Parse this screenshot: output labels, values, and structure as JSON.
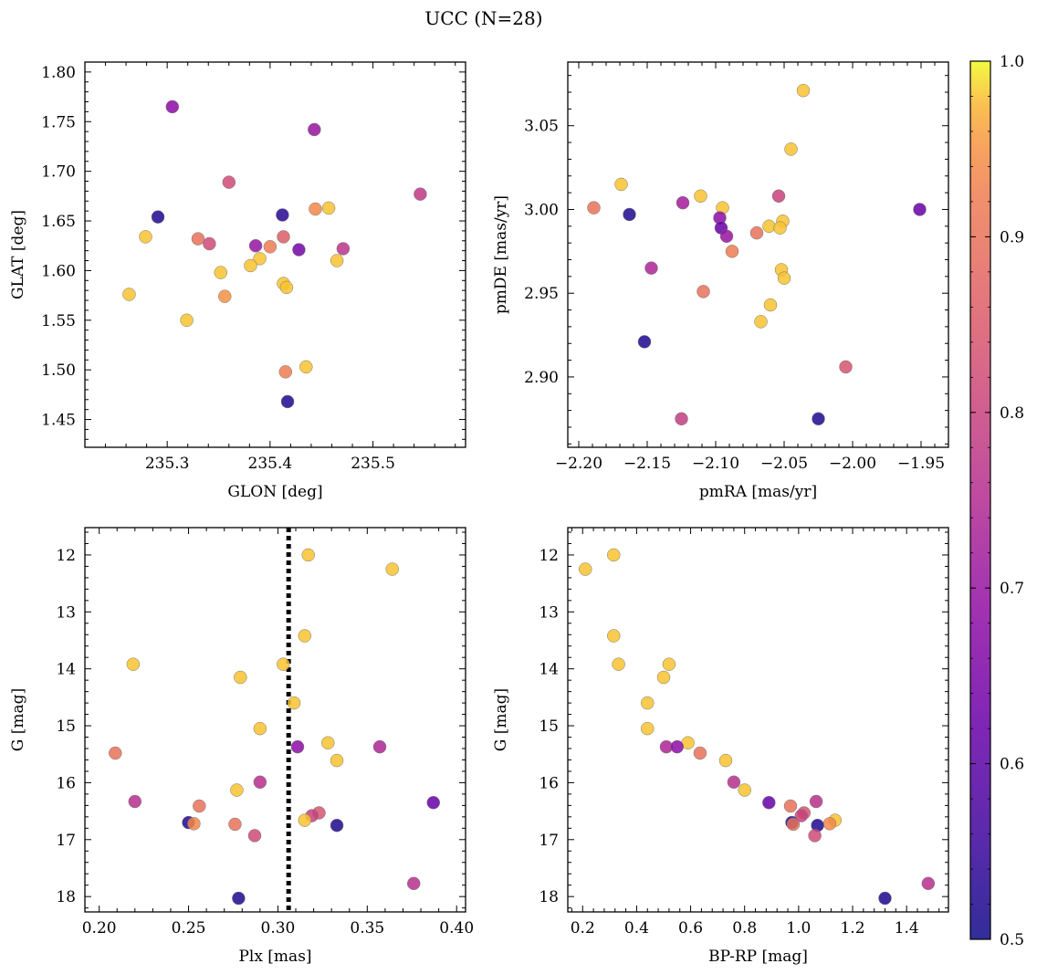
{
  "figure": {
    "title": "UCC (N=28)"
  },
  "colorbar": {
    "vmin": 0.5,
    "vmax": 1.0,
    "ticks": [
      "0.5",
      "0.6",
      "0.7",
      "0.8",
      "0.9",
      "1.0"
    ],
    "colormap": "plasma"
  },
  "chart_data": [
    {
      "type": "scatter",
      "id": "glon-glat",
      "title": "",
      "xlabel": "GLON [deg]",
      "ylabel": "GLAT [deg]",
      "xlim": [
        235.22,
        235.59
      ],
      "ylim": [
        1.422,
        1.81
      ],
      "xticks": [
        235.3,
        235.4,
        235.5
      ],
      "xtick_labels": [
        "235.3",
        "235.4",
        "235.5"
      ],
      "yticks": [
        1.45,
        1.5,
        1.55,
        1.6,
        1.65,
        1.7,
        1.75,
        1.8
      ],
      "ytick_labels": [
        "1.45",
        "1.50",
        "1.55",
        "1.60",
        "1.65",
        "1.70",
        "1.75",
        "1.80"
      ],
      "x": [
        235.305,
        235.443,
        235.36,
        235.546,
        235.444,
        235.457,
        235.279,
        235.291,
        235.412,
        235.33,
        235.413,
        235.341,
        235.4,
        235.386,
        235.428,
        235.471,
        235.39,
        235.381,
        235.465,
        235.352,
        235.413,
        235.416,
        235.263,
        235.356,
        235.319,
        235.435,
        235.415,
        235.417
      ],
      "y": [
        1.765,
        1.742,
        1.689,
        1.677,
        1.662,
        1.663,
        1.634,
        1.654,
        1.656,
        1.632,
        1.634,
        1.627,
        1.624,
        1.625,
        1.621,
        1.622,
        1.612,
        1.605,
        1.61,
        1.598,
        1.587,
        1.583,
        1.576,
        1.574,
        1.55,
        1.503,
        1.498,
        1.468
      ],
      "color": [
        0.68,
        0.7,
        0.82,
        0.78,
        0.94,
        0.98,
        0.98,
        0.52,
        0.53,
        0.9,
        0.86,
        0.82,
        0.92,
        0.7,
        0.64,
        0.77,
        0.98,
        0.98,
        0.98,
        0.98,
        0.98,
        0.98,
        0.98,
        0.95,
        0.98,
        0.98,
        0.92,
        0.52
      ]
    },
    {
      "type": "scatter",
      "id": "pmra-pmde",
      "title": "",
      "xlabel": "pmRA [mas/yr]",
      "ylabel": "pmDE [mas/yr]",
      "xlim": [
        -2.208,
        -1.93
      ],
      "ylim": [
        2.858,
        3.088
      ],
      "xticks": [
        -2.2,
        -2.15,
        -2.1,
        -2.05,
        -2.0,
        -1.95
      ],
      "xtick_labels": [
        "−2.20",
        "−2.15",
        "−2.10",
        "−2.05",
        "−2.00",
        "−1.95"
      ],
      "yticks": [
        2.9,
        2.95,
        3.0,
        3.05
      ],
      "ytick_labels": [
        "2.90",
        "2.95",
        "3.00",
        "3.05"
      ],
      "x": [
        -2.036,
        -2.045,
        -2.169,
        -2.111,
        -2.054,
        -2.124,
        -2.095,
        -2.163,
        -2.189,
        -1.951,
        -2.051,
        -2.097,
        -2.061,
        -2.053,
        -2.096,
        -2.07,
        -2.092,
        -2.088,
        -2.147,
        -2.052,
        -2.05,
        -2.109,
        -2.06,
        -2.067,
        -2.152,
        -2.005,
        -2.125,
        -2.025
      ],
      "y": [
        3.071,
        3.036,
        3.015,
        3.008,
        3.008,
        3.004,
        3.001,
        2.997,
        3.001,
        3.0,
        2.993,
        2.995,
        2.99,
        2.989,
        2.989,
        2.986,
        2.984,
        2.975,
        2.965,
        2.964,
        2.959,
        2.951,
        2.943,
        2.933,
        2.921,
        2.906,
        2.875,
        2.875
      ],
      "color": [
        0.98,
        0.98,
        0.98,
        0.98,
        0.8,
        0.72,
        0.98,
        0.52,
        0.9,
        0.62,
        0.98,
        0.68,
        0.98,
        0.98,
        0.62,
        0.9,
        0.7,
        0.92,
        0.74,
        0.98,
        0.98,
        0.9,
        0.98,
        0.98,
        0.52,
        0.84,
        0.79,
        0.52
      ]
    },
    {
      "type": "scatter",
      "id": "plx-g",
      "title": "",
      "xlabel": "Plx [mas]",
      "ylabel": "G [mag]",
      "xlim": [
        0.192,
        0.405
      ],
      "ylim": [
        18.27,
        11.52
      ],
      "xticks": [
        0.2,
        0.25,
        0.3,
        0.35,
        0.4
      ],
      "xtick_labels": [
        "0.20",
        "0.25",
        "0.30",
        "0.35",
        "0.40"
      ],
      "yticks": [
        12,
        13,
        14,
        15,
        16,
        17,
        18
      ],
      "ytick_labels": [
        "12",
        "13",
        "14",
        "15",
        "16",
        "17",
        "18"
      ],
      "vline": 0.306,
      "x": [
        0.317,
        0.364,
        0.315,
        0.219,
        0.303,
        0.279,
        0.309,
        0.29,
        0.209,
        0.328,
        0.311,
        0.357,
        0.333,
        0.29,
        0.277,
        0.22,
        0.387,
        0.256,
        0.323,
        0.319,
        0.315,
        0.25,
        0.253,
        0.276,
        0.333,
        0.287,
        0.376,
        0.278
      ],
      "y": [
        12.0,
        12.25,
        13.42,
        13.92,
        13.92,
        14.15,
        14.6,
        15.05,
        15.48,
        15.3,
        15.37,
        15.37,
        15.61,
        15.99,
        16.13,
        16.33,
        16.35,
        16.41,
        16.53,
        16.58,
        16.66,
        16.7,
        16.72,
        16.73,
        16.75,
        16.93,
        17.77,
        18.03
      ],
      "color": [
        0.98,
        0.98,
        0.98,
        0.98,
        0.98,
        0.98,
        0.98,
        0.98,
        0.9,
        0.98,
        0.68,
        0.74,
        0.98,
        0.76,
        0.98,
        0.76,
        0.62,
        0.9,
        0.84,
        0.8,
        0.98,
        0.52,
        0.94,
        0.9,
        0.52,
        0.82,
        0.76,
        0.52
      ]
    },
    {
      "type": "scatter",
      "id": "bprp-g",
      "title": "",
      "xlabel": "BP-RP [mag]",
      "ylabel": "G [mag]",
      "xlim": [
        0.145,
        1.555
      ],
      "ylim": [
        18.27,
        11.52
      ],
      "xticks": [
        0.2,
        0.4,
        0.6,
        0.8,
        1.0,
        1.2,
        1.4
      ],
      "xtick_labels": [
        "0.2",
        "0.4",
        "0.6",
        "0.8",
        "1.0",
        "1.2",
        "1.4"
      ],
      "yticks": [
        12,
        13,
        14,
        15,
        16,
        17,
        18
      ],
      "ytick_labels": [
        "12",
        "13",
        "14",
        "15",
        "16",
        "17",
        "18"
      ],
      "x": [
        0.315,
        0.21,
        0.315,
        0.333,
        0.52,
        0.5,
        0.44,
        0.44,
        0.635,
        0.59,
        0.51,
        0.55,
        0.73,
        0.76,
        0.8,
        1.065,
        0.89,
        0.97,
        1.02,
        1.01,
        1.135,
        0.975,
        1.115,
        0.98,
        1.07,
        1.06,
        1.48,
        1.32
      ],
      "y": [
        12.0,
        12.25,
        13.42,
        13.92,
        13.92,
        14.15,
        14.6,
        15.05,
        15.48,
        15.3,
        15.37,
        15.37,
        15.61,
        15.99,
        16.13,
        16.33,
        16.35,
        16.41,
        16.53,
        16.58,
        16.66,
        16.7,
        16.72,
        16.73,
        16.75,
        16.93,
        17.77,
        18.03
      ],
      "color": [
        0.98,
        0.98,
        0.98,
        0.98,
        0.98,
        0.98,
        0.98,
        0.98,
        0.9,
        0.98,
        0.74,
        0.68,
        0.98,
        0.76,
        0.98,
        0.76,
        0.62,
        0.9,
        0.84,
        0.8,
        0.98,
        0.52,
        0.94,
        0.9,
        0.52,
        0.82,
        0.76,
        0.52
      ]
    }
  ]
}
